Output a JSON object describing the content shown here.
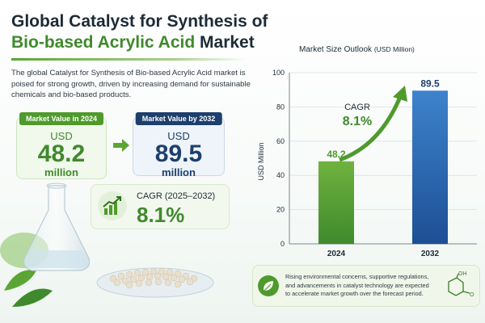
{
  "title": {
    "line1": "Global Catalyst for Synthesis of",
    "line2_green": "Bio-based Acrylic Acid",
    "line2_dark": "Market"
  },
  "description": "The global Catalyst for Synthesis of Bio-based Acrylic Acid market is poised for strong growth, driven by increasing demand for sustainable chemicals and bio-based products.",
  "cards": {
    "value_2024": {
      "tag": "Market Value in 2024",
      "currency": "USD",
      "value": "48.2",
      "unit": "million"
    },
    "value_2032": {
      "tag": "Market Value by 2032",
      "currency": "USD",
      "value": "89.5",
      "unit": "million"
    },
    "cagr": {
      "label": "CAGR (2025–2032)",
      "value": "8.1%"
    }
  },
  "colors": {
    "green": "#4f9a2c",
    "navy": "#1d3f6c",
    "blue_bar": "#2f6fb8",
    "green_bar": "#5aa533"
  },
  "chart_data": {
    "type": "bar",
    "title": "Market Size Outlook",
    "title_unit": "(USD Million)",
    "ylabel": "USD Million",
    "categories": [
      "2024",
      "2032"
    ],
    "values": [
      48.2,
      89.5
    ],
    "value_labels": [
      "48.2",
      "89.5"
    ],
    "ylim": [
      0,
      100
    ],
    "yticks": [
      0,
      20,
      40,
      60,
      80,
      100
    ],
    "grid": true,
    "annotation": {
      "label": "CAGR",
      "value": "8.1%"
    }
  },
  "footer": {
    "text": "Rising environmental concerns, supportive regulations, and advancements in catalyst technology are expected to accelerate market growth over the forecast period.",
    "molecule_labels": [
      "OH",
      "O"
    ]
  },
  "icons": [
    "arrow-right-icon",
    "growth-chart-icon",
    "leaf-icon",
    "molecule-icon"
  ]
}
